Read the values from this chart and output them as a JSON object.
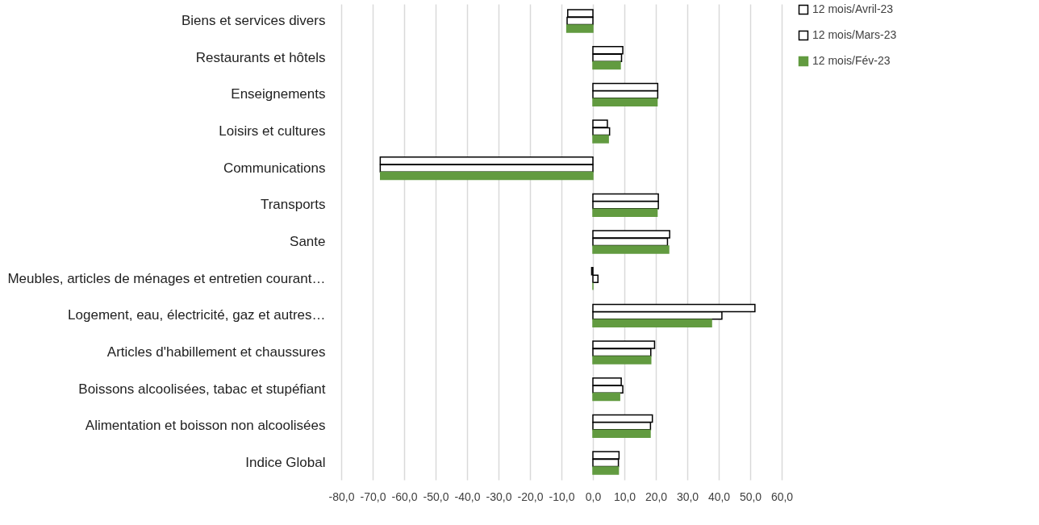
{
  "chart_data": {
    "type": "bar",
    "orientation": "horizontal",
    "categories": [
      "Biens et services divers",
      "Restaurants et hôtels",
      "Enseignements",
      "Loisirs et cultures",
      "Communications",
      "Transports",
      "Sante",
      "Meubles, articles de ménages et entretien courant…",
      "Logement, eau, électricité, gaz et autres…",
      "Articles d'habillement et chaussures",
      "Boissons alcoolisées, tabac et stupéfiant",
      "Alimentation et boisson non alcoolisées",
      "Indice Global"
    ],
    "series": [
      {
        "name": "12 mois/Avril-23",
        "color": "#ffffff",
        "values": [
          -8.0,
          9.5,
          20.6,
          4.6,
          -67.6,
          20.8,
          24.4,
          -0.4,
          51.5,
          19.6,
          9.0,
          18.9,
          8.3
        ]
      },
      {
        "name": "12 mois/Mars-23",
        "color": "#ffffff",
        "values": [
          -8.2,
          9.1,
          20.6,
          5.3,
          -67.6,
          20.8,
          23.7,
          1.6,
          41.0,
          18.4,
          9.5,
          18.3,
          8.1
        ]
      },
      {
        "name": "12 mois/Fév-23",
        "color": "#629b40",
        "values": [
          -8.3,
          8.7,
          20.4,
          4.9,
          -67.5,
          20.4,
          24.1,
          0.0,
          37.7,
          18.4,
          8.5,
          18.2,
          8.1
        ]
      }
    ],
    "xlim": [
      -80,
      60
    ],
    "xticks": [
      {
        "value": -80,
        "label": "-80,0"
      },
      {
        "value": -70,
        "label": "-70,0"
      },
      {
        "value": -60,
        "label": "-60,0"
      },
      {
        "value": -50,
        "label": "-50,0"
      },
      {
        "value": -40,
        "label": "-40,0"
      },
      {
        "value": -30,
        "label": "-30,0"
      },
      {
        "value": -20,
        "label": "-20,0"
      },
      {
        "value": -10,
        "label": "-10,0"
      },
      {
        "value": 0,
        "label": "0,0"
      },
      {
        "value": 10,
        "label": "10,0"
      },
      {
        "value": 20,
        "label": "20,0"
      },
      {
        "value": 30,
        "label": "30,0"
      },
      {
        "value": 40,
        "label": "40,0"
      },
      {
        "value": 50,
        "label": "50,0"
      },
      {
        "value": 60,
        "label": "60,0"
      }
    ],
    "grid": "x",
    "legend": "right"
  }
}
